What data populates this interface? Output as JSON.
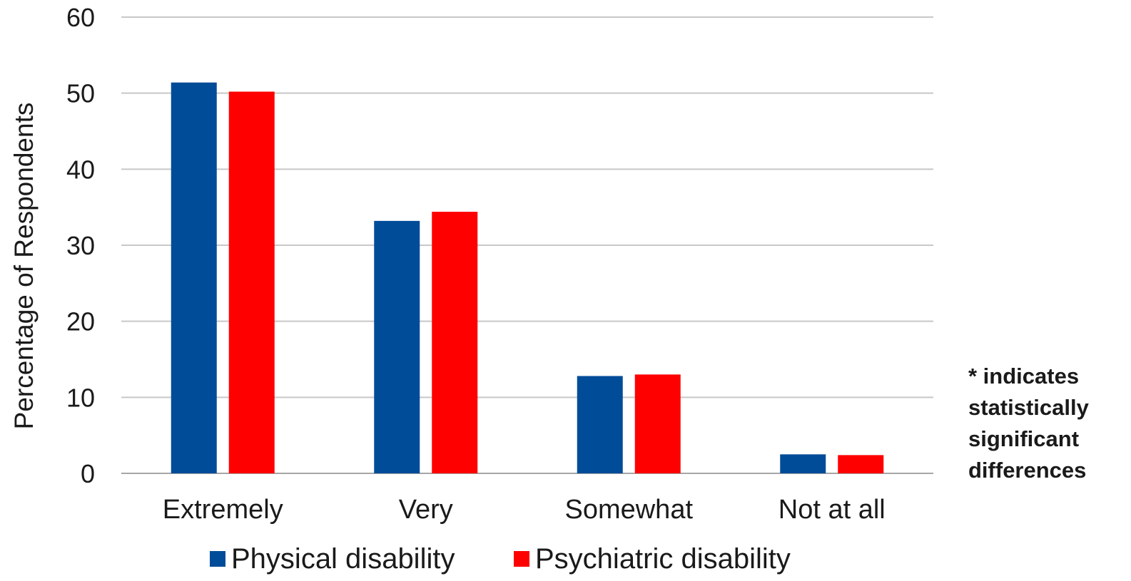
{
  "chart_data": {
    "type": "bar",
    "categories": [
      "Extremely",
      "Very",
      "Somewhat",
      "Not at all"
    ],
    "series": [
      {
        "name": "Physical disability",
        "color": "#004C99",
        "values": [
          51.4,
          33.2,
          12.8,
          2.5
        ]
      },
      {
        "name": "Psychiatric disability",
        "color": "#FF0000",
        "values": [
          50.2,
          34.4,
          13.0,
          2.4
        ]
      }
    ],
    "title": "",
    "xlabel": "",
    "ylabel": "Percentage of Respondents",
    "ylim": [
      0,
      60
    ],
    "yticks": [
      0,
      10,
      20,
      30,
      40,
      50,
      60
    ],
    "grid": true,
    "legend_position": "bottom",
    "annotation": [
      "* indicates",
      "statistically",
      "significant",
      "differences"
    ]
  }
}
